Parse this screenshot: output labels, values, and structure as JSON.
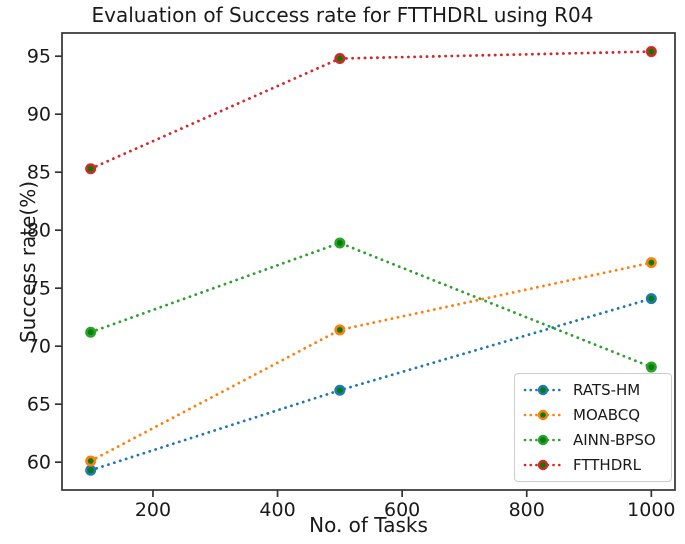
{
  "title": "Evaluation of Success rate for FTTHDRL using R04",
  "chart_data": {
    "type": "line",
    "title": "Evaluation of Success rate for FTTHDRL using R04",
    "xlabel": "No. of Tasks",
    "ylabel": "Success rate(%)",
    "x": [
      100,
      500,
      1000
    ],
    "series": [
      {
        "name": "RATS-HM",
        "color": "#1f77b4",
        "values": [
          59.3,
          66.2,
          74.1
        ]
      },
      {
        "name": "MOABCQ",
        "color": "#ff7f0e",
        "values": [
          60.1,
          71.4,
          77.2
        ]
      },
      {
        "name": "AINN-BPSO",
        "color": "#2ca02c",
        "values": [
          71.2,
          78.9,
          68.2
        ]
      },
      {
        "name": "FTTHDRL",
        "color": "#d62728",
        "values": [
          85.3,
          94.8,
          95.4
        ]
      }
    ],
    "line_style": "dotted",
    "marker": "circle",
    "marker_face_color": "#008000",
    "xticks": [
      200,
      400,
      600,
      800,
      1000
    ],
    "yticks": [
      60,
      65,
      70,
      75,
      80,
      85,
      90,
      95
    ],
    "xlim": [
      54,
      1038
    ],
    "ylim": [
      57.6,
      97.0
    ],
    "grid": false,
    "legend_position": "lower right"
  }
}
